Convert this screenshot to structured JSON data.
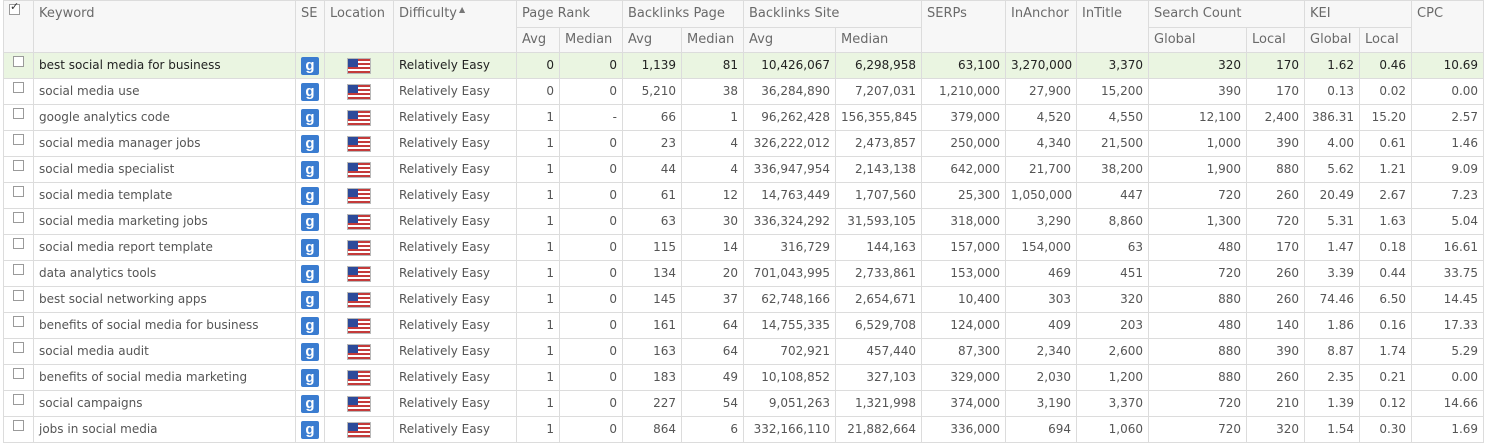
{
  "headers": {
    "keyword": "Keyword",
    "se": "SE",
    "location": "Location",
    "difficulty": "Difficulty",
    "page_rank": "Page Rank",
    "backlinks_page": "Backlinks Page",
    "backlinks_site": "Backlinks Site",
    "serps": "SERPs",
    "inanchor": "InAnchor",
    "intitle": "InTitle",
    "search_count": "Search Count",
    "kei": "KEI",
    "cpc": "CPC",
    "avg": "Avg",
    "median": "Median",
    "global": "Global",
    "local": "Local"
  },
  "icons": {
    "search_engine": "google-icon",
    "search_engine_glyph": "g",
    "location": "us-flag-icon",
    "sort": "sort-ascending-icon",
    "sort_glyph": "▲"
  },
  "colors": {
    "selected_row": "#eaf5e1",
    "google_blue": "#3a7cd0"
  },
  "rows": [
    {
      "keyword": "best social media for business",
      "difficulty": "Relatively Easy",
      "pr_avg": "0",
      "pr_median": "0",
      "blp_avg": "1,139",
      "blp_median": "81",
      "bls_avg": "10,426,067",
      "bls_median": "6,298,958",
      "serps": "63,100",
      "inanchor": "3,270,000",
      "intitle": "3,370",
      "sc_global": "320",
      "sc_local": "170",
      "kei_global": "1.62",
      "kei_local": "0.46",
      "cpc": "10.69"
    },
    {
      "keyword": "social media use",
      "difficulty": "Relatively Easy",
      "pr_avg": "0",
      "pr_median": "0",
      "blp_avg": "5,210",
      "blp_median": "38",
      "bls_avg": "36,284,890",
      "bls_median": "7,207,031",
      "serps": "1,210,000",
      "inanchor": "27,900",
      "intitle": "15,200",
      "sc_global": "390",
      "sc_local": "170",
      "kei_global": "0.13",
      "kei_local": "0.02",
      "cpc": "0.00"
    },
    {
      "keyword": "google analytics code",
      "difficulty": "Relatively Easy",
      "pr_avg": "1",
      "pr_median": "-",
      "blp_avg": "66",
      "blp_median": "1",
      "bls_avg": "96,262,428",
      "bls_median": "156,355,845",
      "serps": "379,000",
      "inanchor": "4,520",
      "intitle": "4,550",
      "sc_global": "12,100",
      "sc_local": "2,400",
      "kei_global": "386.31",
      "kei_local": "15.20",
      "cpc": "2.57"
    },
    {
      "keyword": "social media manager jobs",
      "difficulty": "Relatively Easy",
      "pr_avg": "1",
      "pr_median": "0",
      "blp_avg": "23",
      "blp_median": "4",
      "bls_avg": "326,222,012",
      "bls_median": "2,473,857",
      "serps": "250,000",
      "inanchor": "4,340",
      "intitle": "21,500",
      "sc_global": "1,000",
      "sc_local": "390",
      "kei_global": "4.00",
      "kei_local": "0.61",
      "cpc": "1.46"
    },
    {
      "keyword": "social media specialist",
      "difficulty": "Relatively Easy",
      "pr_avg": "1",
      "pr_median": "0",
      "blp_avg": "44",
      "blp_median": "4",
      "bls_avg": "336,947,954",
      "bls_median": "2,143,138",
      "serps": "642,000",
      "inanchor": "21,700",
      "intitle": "38,200",
      "sc_global": "1,900",
      "sc_local": "880",
      "kei_global": "5.62",
      "kei_local": "1.21",
      "cpc": "9.09"
    },
    {
      "keyword": "social media template",
      "difficulty": "Relatively Easy",
      "pr_avg": "1",
      "pr_median": "0",
      "blp_avg": "61",
      "blp_median": "12",
      "bls_avg": "14,763,449",
      "bls_median": "1,707,560",
      "serps": "25,300",
      "inanchor": "1,050,000",
      "intitle": "447",
      "sc_global": "720",
      "sc_local": "260",
      "kei_global": "20.49",
      "kei_local": "2.67",
      "cpc": "7.23"
    },
    {
      "keyword": "social media marketing jobs",
      "difficulty": "Relatively Easy",
      "pr_avg": "1",
      "pr_median": "0",
      "blp_avg": "63",
      "blp_median": "30",
      "bls_avg": "336,324,292",
      "bls_median": "31,593,105",
      "serps": "318,000",
      "inanchor": "3,290",
      "intitle": "8,860",
      "sc_global": "1,300",
      "sc_local": "720",
      "kei_global": "5.31",
      "kei_local": "1.63",
      "cpc": "5.04"
    },
    {
      "keyword": "social media report template",
      "difficulty": "Relatively Easy",
      "pr_avg": "1",
      "pr_median": "0",
      "blp_avg": "115",
      "blp_median": "14",
      "bls_avg": "316,729",
      "bls_median": "144,163",
      "serps": "157,000",
      "inanchor": "154,000",
      "intitle": "63",
      "sc_global": "480",
      "sc_local": "170",
      "kei_global": "1.47",
      "kei_local": "0.18",
      "cpc": "16.61"
    },
    {
      "keyword": "data analytics tools",
      "difficulty": "Relatively Easy",
      "pr_avg": "1",
      "pr_median": "0",
      "blp_avg": "134",
      "blp_median": "20",
      "bls_avg": "701,043,995",
      "bls_median": "2,733,861",
      "serps": "153,000",
      "inanchor": "469",
      "intitle": "451",
      "sc_global": "720",
      "sc_local": "260",
      "kei_global": "3.39",
      "kei_local": "0.44",
      "cpc": "33.75"
    },
    {
      "keyword": "best social networking apps",
      "difficulty": "Relatively Easy",
      "pr_avg": "1",
      "pr_median": "0",
      "blp_avg": "145",
      "blp_median": "37",
      "bls_avg": "62,748,166",
      "bls_median": "2,654,671",
      "serps": "10,400",
      "inanchor": "303",
      "intitle": "320",
      "sc_global": "880",
      "sc_local": "260",
      "kei_global": "74.46",
      "kei_local": "6.50",
      "cpc": "14.45"
    },
    {
      "keyword": "benefits of social media for business",
      "difficulty": "Relatively Easy",
      "pr_avg": "1",
      "pr_median": "0",
      "blp_avg": "161",
      "blp_median": "64",
      "bls_avg": "14,755,335",
      "bls_median": "6,529,708",
      "serps": "124,000",
      "inanchor": "409",
      "intitle": "203",
      "sc_global": "480",
      "sc_local": "140",
      "kei_global": "1.86",
      "kei_local": "0.16",
      "cpc": "17.33"
    },
    {
      "keyword": "social media audit",
      "difficulty": "Relatively Easy",
      "pr_avg": "1",
      "pr_median": "0",
      "blp_avg": "163",
      "blp_median": "64",
      "bls_avg": "702,921",
      "bls_median": "457,440",
      "serps": "87,300",
      "inanchor": "2,340",
      "intitle": "2,600",
      "sc_global": "880",
      "sc_local": "390",
      "kei_global": "8.87",
      "kei_local": "1.74",
      "cpc": "5.29"
    },
    {
      "keyword": "benefits of social media marketing",
      "difficulty": "Relatively Easy",
      "pr_avg": "1",
      "pr_median": "0",
      "blp_avg": "183",
      "blp_median": "49",
      "bls_avg": "10,108,852",
      "bls_median": "327,103",
      "serps": "329,000",
      "inanchor": "2,030",
      "intitle": "1,200",
      "sc_global": "880",
      "sc_local": "260",
      "kei_global": "2.35",
      "kei_local": "0.21",
      "cpc": "0.00"
    },
    {
      "keyword": "social campaigns",
      "difficulty": "Relatively Easy",
      "pr_avg": "1",
      "pr_median": "0",
      "blp_avg": "227",
      "blp_median": "54",
      "bls_avg": "9,051,263",
      "bls_median": "1,321,998",
      "serps": "374,000",
      "inanchor": "3,190",
      "intitle": "3,370",
      "sc_global": "720",
      "sc_local": "210",
      "kei_global": "1.39",
      "kei_local": "0.12",
      "cpc": "14.66"
    },
    {
      "keyword": "jobs in social media",
      "difficulty": "Relatively Easy",
      "pr_avg": "1",
      "pr_median": "0",
      "blp_avg": "864",
      "blp_median": "6",
      "bls_avg": "332,166,110",
      "bls_median": "21,882,664",
      "serps": "336,000",
      "inanchor": "694",
      "intitle": "1,060",
      "sc_global": "720",
      "sc_local": "320",
      "kei_global": "1.54",
      "kei_local": "0.30",
      "cpc": "1.69"
    }
  ]
}
